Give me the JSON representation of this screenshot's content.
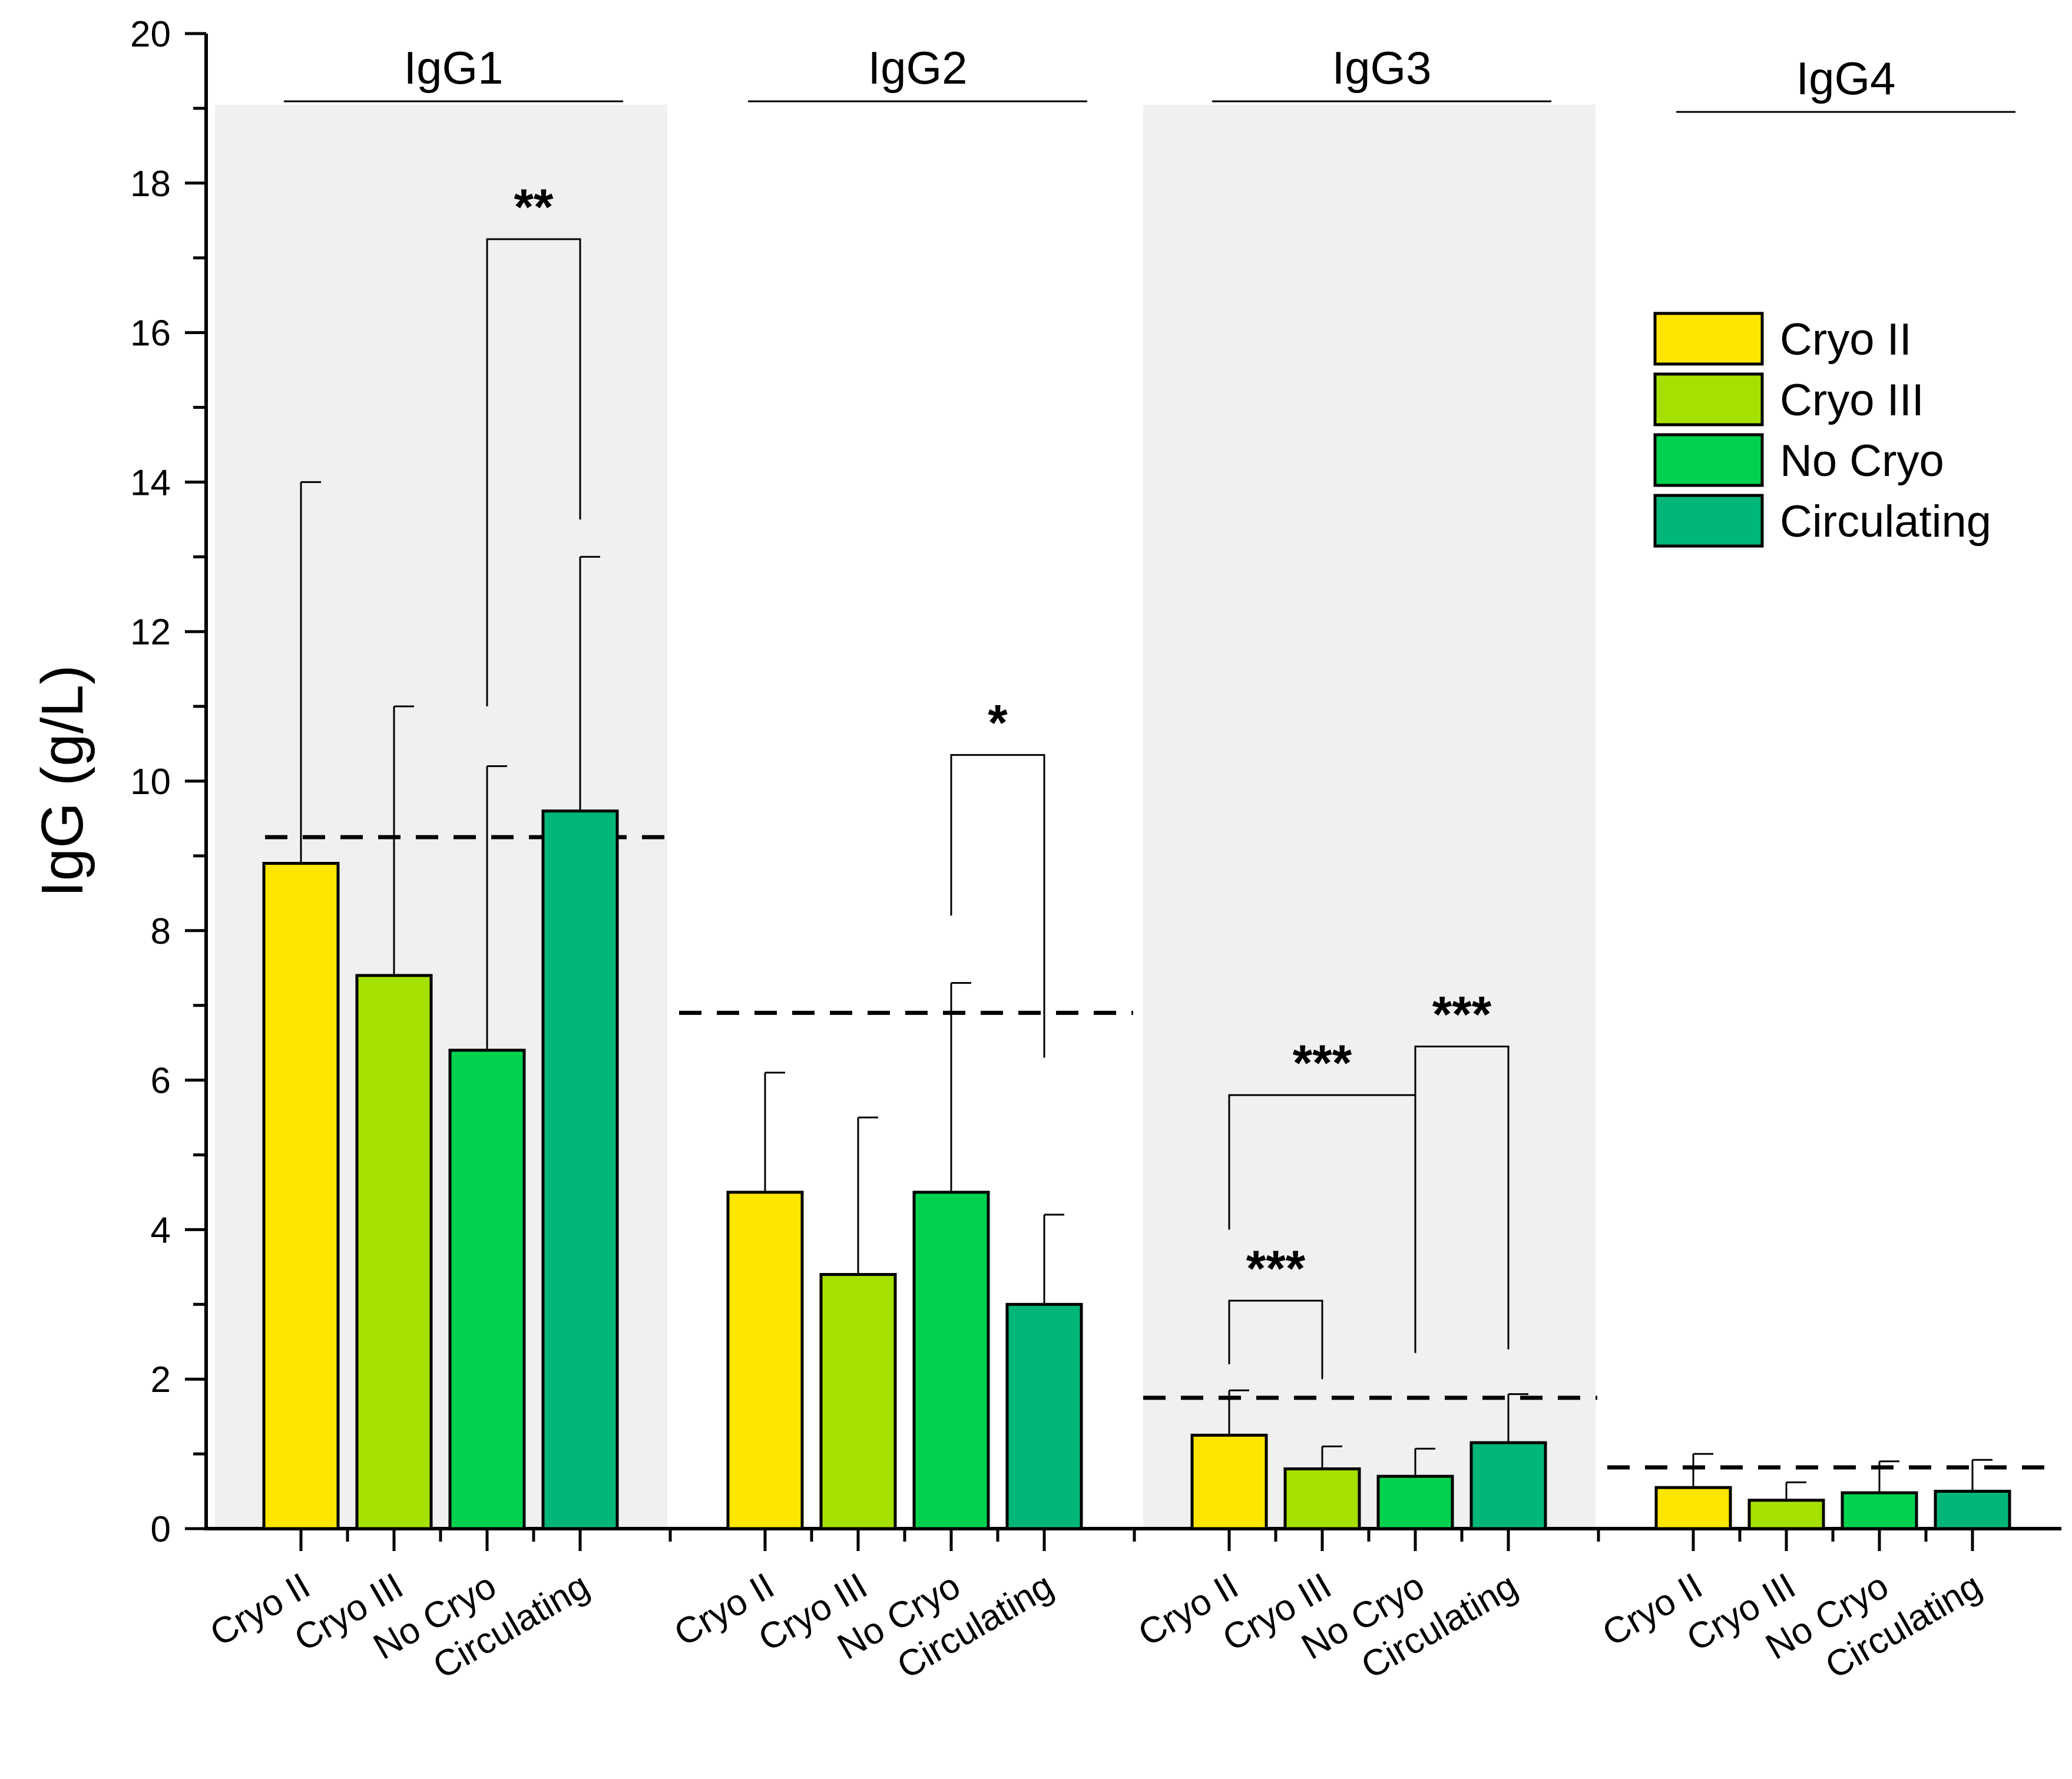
{
  "colors": {
    "panel_shade": "#f0f0f0",
    "axis": "#000000",
    "series": [
      "#ffe600",
      "#a6e000",
      "#00d250",
      "#00b679"
    ]
  },
  "chart_data": {
    "type": "bar",
    "ylabel": "IgG (g/L)",
    "xlabel": "",
    "ylim": [
      0,
      20
    ],
    "yticks": [
      "0",
      "2",
      "4",
      "6",
      "8",
      "10",
      "12",
      "14",
      "16",
      "18",
      "20"
    ],
    "groups": [
      "IgG1",
      "IgG2",
      "IgG3",
      "IgG4"
    ],
    "categories": [
      "Cryo II",
      "Cryo III",
      "No Cryo",
      "Circulating"
    ],
    "series": [
      {
        "name": "Cryo II",
        "values": [
          8.9,
          4.5,
          1.25,
          0.55
        ],
        "errors": [
          14.0,
          6.1,
          1.85,
          1.0
        ]
      },
      {
        "name": "Cryo III",
        "values": [
          7.4,
          3.4,
          0.8,
          0.38
        ],
        "errors": [
          11.0,
          5.5,
          1.1,
          0.62
        ]
      },
      {
        "name": "No Cryo",
        "values": [
          6.4,
          4.5,
          0.7,
          0.48
        ],
        "errors": [
          10.2,
          7.3,
          1.07,
          0.9
        ]
      },
      {
        "name": "Circulating",
        "values": [
          9.6,
          3.0,
          1.15,
          0.5
        ],
        "errors": [
          13.0,
          4.2,
          1.8,
          0.92
        ]
      }
    ],
    "reference_lines": [
      {
        "group": "IgG1",
        "value": 9.25
      },
      {
        "group": "IgG2",
        "value": 6.9
      },
      {
        "group": "IgG3",
        "value": 1.75
      },
      {
        "group": "IgG4",
        "value": 0.82
      }
    ],
    "significance": [
      {
        "group": "IgG1",
        "from": "No Cryo",
        "to": "Circulating",
        "label": "**",
        "bracket_y": 17.25,
        "left_end": 11.0,
        "right_end": 13.5
      },
      {
        "group": "IgG2",
        "from": "No Cryo",
        "to": "Circulating",
        "label": "*",
        "bracket_y": 10.35,
        "left_end": 8.2,
        "right_end": 6.3
      },
      {
        "group": "IgG3",
        "from": "Cryo II",
        "to": "Cryo III",
        "label": "***",
        "bracket_y": 3.05,
        "left_end": 2.2,
        "right_end": 2.0
      },
      {
        "group": "IgG3",
        "from": "Cryo II",
        "to": "No Cryo",
        "label": "***",
        "bracket_y": 5.8,
        "left_end": 4.0,
        "right_end": 2.35
      },
      {
        "group": "IgG3",
        "from": "No Cryo",
        "to": "Circulating",
        "label": "***",
        "bracket_y": 6.45,
        "left_end": 5.8,
        "right_end": 2.4
      }
    ],
    "legend": {
      "position": "top-right",
      "entries": [
        "Cryo II",
        "Cryo III",
        "No Cryo",
        "Circulating"
      ]
    }
  }
}
